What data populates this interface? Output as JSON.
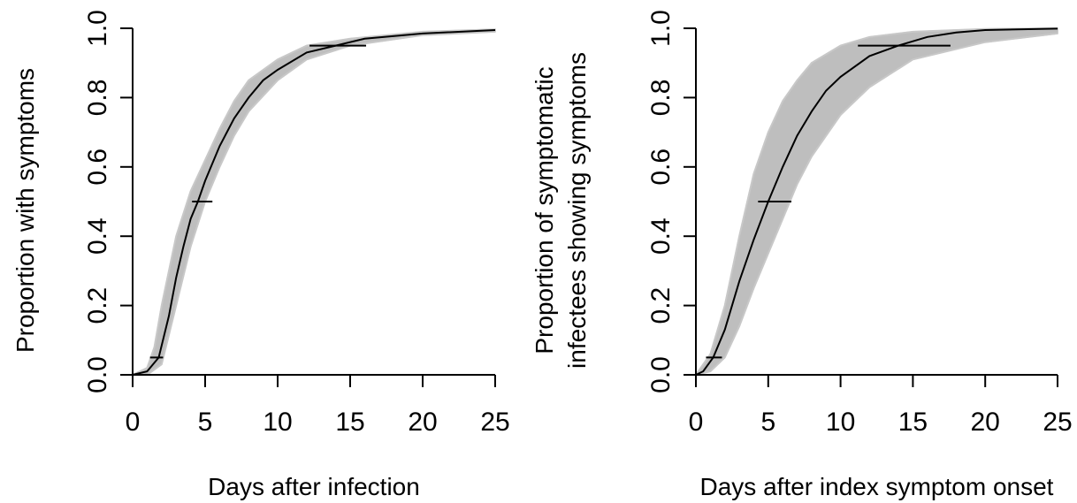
{
  "chart_data": [
    {
      "type": "line",
      "xlabel": "Days after infection",
      "ylabel": [
        "Proportion with symptoms"
      ],
      "xlim": [
        0,
        25
      ],
      "ylim": [
        0,
        1
      ],
      "xticks": [
        "0",
        "5",
        "10",
        "15",
        "20",
        "25"
      ],
      "yticks": [
        "0.0",
        "0.2",
        "0.4",
        "0.6",
        "0.8",
        "1.0"
      ],
      "grid": false,
      "series": [
        {
          "role": "central-estimate",
          "color": "#000000",
          "points": [
            {
              "x": 0,
              "y": 0
            },
            {
              "x": 1,
              "y": 0.01
            },
            {
              "x": 1.8,
              "y": 0.05
            },
            {
              "x": 2.5,
              "y": 0.17
            },
            {
              "x": 3,
              "y": 0.28
            },
            {
              "x": 3.5,
              "y": 0.37
            },
            {
              "x": 4,
              "y": 0.45
            },
            {
              "x": 4.5,
              "y": 0.5
            },
            {
              "x": 5,
              "y": 0.56
            },
            {
              "x": 6,
              "y": 0.66
            },
            {
              "x": 7,
              "y": 0.74
            },
            {
              "x": 8,
              "y": 0.8
            },
            {
              "x": 9,
              "y": 0.85
            },
            {
              "x": 10,
              "y": 0.88
            },
            {
              "x": 12,
              "y": 0.93
            },
            {
              "x": 14,
              "y": 0.95
            },
            {
              "x": 16,
              "y": 0.97
            },
            {
              "x": 20,
              "y": 0.985
            },
            {
              "x": 25,
              "y": 0.995
            }
          ]
        }
      ],
      "uncertainty_band": {
        "color": "#bebebe",
        "lower": [
          {
            "x": 0,
            "y": 0
          },
          {
            "x": 1,
            "y": 0
          },
          {
            "x": 2,
            "y": 0.03
          },
          {
            "x": 3,
            "y": 0.2
          },
          {
            "x": 4,
            "y": 0.37
          },
          {
            "x": 5,
            "y": 0.5
          },
          {
            "x": 6,
            "y": 0.6
          },
          {
            "x": 7,
            "y": 0.69
          },
          {
            "x": 8,
            "y": 0.76
          },
          {
            "x": 10,
            "y": 0.85
          },
          {
            "x": 12,
            "y": 0.91
          },
          {
            "x": 15,
            "y": 0.95
          },
          {
            "x": 20,
            "y": 0.98
          },
          {
            "x": 25,
            "y": 0.99
          }
        ],
        "upper": [
          {
            "x": 0,
            "y": 0
          },
          {
            "x": 1,
            "y": 0.02
          },
          {
            "x": 1.5,
            "y": 0.08
          },
          {
            "x": 2,
            "y": 0.2
          },
          {
            "x": 3,
            "y": 0.4
          },
          {
            "x": 4,
            "y": 0.53
          },
          {
            "x": 5,
            "y": 0.62
          },
          {
            "x": 6,
            "y": 0.71
          },
          {
            "x": 7,
            "y": 0.79
          },
          {
            "x": 8,
            "y": 0.85
          },
          {
            "x": 10,
            "y": 0.91
          },
          {
            "x": 12,
            "y": 0.95
          },
          {
            "x": 15,
            "y": 0.97
          },
          {
            "x": 20,
            "y": 0.99
          },
          {
            "x": 25,
            "y": 0.997
          }
        ]
      },
      "intervals": [
        {
          "y": 0.05,
          "x_low": 1.2,
          "x_high": 2.1
        },
        {
          "y": 0.5,
          "x_low": 4.1,
          "x_high": 5.5
        },
        {
          "y": 0.95,
          "x_low": 12.2,
          "x_high": 16.1
        }
      ]
    },
    {
      "type": "line",
      "xlabel": "Days after index symptom onset",
      "ylabel": [
        "Proportion of symptomatic",
        "infectees showing symptoms"
      ],
      "xlim": [
        0,
        25
      ],
      "ylim": [
        0,
        1
      ],
      "xticks": [
        "0",
        "5",
        "10",
        "15",
        "20",
        "25"
      ],
      "yticks": [
        "0.0",
        "0.2",
        "0.4",
        "0.6",
        "0.8",
        "1.0"
      ],
      "grid": false,
      "series": [
        {
          "role": "central-estimate",
          "color": "#000000",
          "points": [
            {
              "x": 0,
              "y": 0
            },
            {
              "x": 0.5,
              "y": 0.01
            },
            {
              "x": 1.2,
              "y": 0.05
            },
            {
              "x": 2,
              "y": 0.13
            },
            {
              "x": 3,
              "y": 0.27
            },
            {
              "x": 4,
              "y": 0.39
            },
            {
              "x": 5,
              "y": 0.5
            },
            {
              "x": 6,
              "y": 0.6
            },
            {
              "x": 7,
              "y": 0.69
            },
            {
              "x": 8,
              "y": 0.76
            },
            {
              "x": 9,
              "y": 0.82
            },
            {
              "x": 10,
              "y": 0.86
            },
            {
              "x": 12,
              "y": 0.92
            },
            {
              "x": 14,
              "y": 0.95
            },
            {
              "x": 16,
              "y": 0.975
            },
            {
              "x": 18,
              "y": 0.988
            },
            {
              "x": 20,
              "y": 0.995
            },
            {
              "x": 25,
              "y": 0.999
            }
          ]
        }
      ],
      "uncertainty_band": {
        "color": "#bebebe",
        "lower": [
          {
            "x": 0,
            "y": 0
          },
          {
            "x": 1,
            "y": 0.01
          },
          {
            "x": 2,
            "y": 0.05
          },
          {
            "x": 3,
            "y": 0.14
          },
          {
            "x": 4,
            "y": 0.25
          },
          {
            "x": 5,
            "y": 0.35
          },
          {
            "x": 6,
            "y": 0.45
          },
          {
            "x": 7,
            "y": 0.55
          },
          {
            "x": 8,
            "y": 0.63
          },
          {
            "x": 10,
            "y": 0.75
          },
          {
            "x": 12,
            "y": 0.83
          },
          {
            "x": 15,
            "y": 0.91
          },
          {
            "x": 20,
            "y": 0.96
          },
          {
            "x": 25,
            "y": 0.985
          }
        ],
        "upper": [
          {
            "x": 0,
            "y": 0
          },
          {
            "x": 1,
            "y": 0.06
          },
          {
            "x": 2,
            "y": 0.2
          },
          {
            "x": 3,
            "y": 0.4
          },
          {
            "x": 4,
            "y": 0.58
          },
          {
            "x": 5,
            "y": 0.7
          },
          {
            "x": 6,
            "y": 0.79
          },
          {
            "x": 7,
            "y": 0.85
          },
          {
            "x": 8,
            "y": 0.9
          },
          {
            "x": 10,
            "y": 0.95
          },
          {
            "x": 12,
            "y": 0.975
          },
          {
            "x": 15,
            "y": 0.99
          },
          {
            "x": 20,
            "y": 0.998
          },
          {
            "x": 25,
            "y": 1
          }
        ]
      },
      "intervals": [
        {
          "y": 0.05,
          "x_low": 0.7,
          "x_high": 1.8
        },
        {
          "y": 0.5,
          "x_low": 4.3,
          "x_high": 6.6
        },
        {
          "y": 0.95,
          "x_low": 11.2,
          "x_high": 17.6
        }
      ]
    }
  ]
}
